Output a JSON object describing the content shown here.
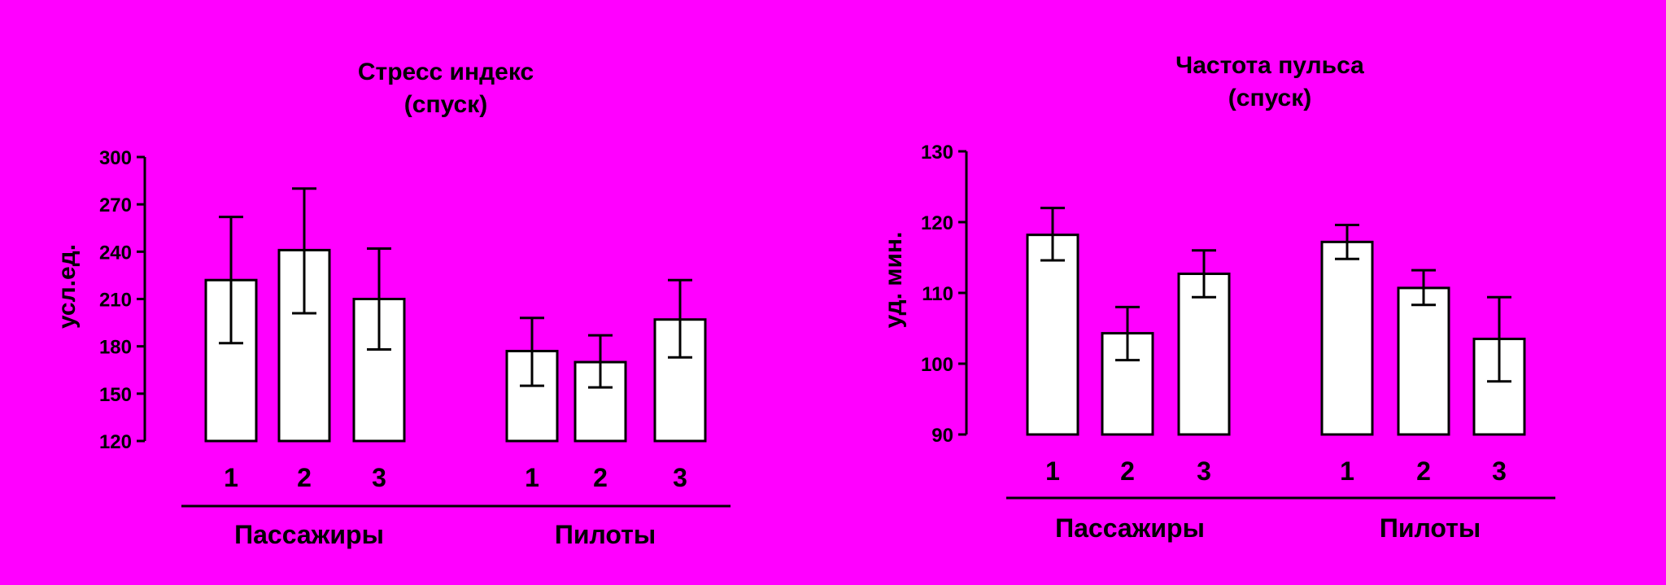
{
  "background": "#ff00ff",
  "bar_fill": "#ffffff",
  "ink": "#000000",
  "chart_data": [
    {
      "type": "bar",
      "title": "Стресс индекс",
      "subtitle": "(спуск)",
      "ylabel": "усл.ед.",
      "ylim": [
        120,
        300
      ],
      "yticks": [
        120,
        150,
        180,
        210,
        240,
        270,
        300
      ],
      "groups": [
        {
          "name": "Пассажиры",
          "categories": [
            "1",
            "2",
            "3"
          ],
          "values": [
            222,
            241,
            210
          ],
          "err_low": [
            182,
            201,
            178
          ],
          "err_high": [
            262,
            280,
            242
          ]
        },
        {
          "name": "Пилоты",
          "categories": [
            "1",
            "2",
            "3"
          ],
          "values": [
            177,
            170,
            197
          ],
          "err_low": [
            155,
            154,
            173
          ],
          "err_high": [
            198,
            187,
            222
          ]
        }
      ]
    },
    {
      "type": "bar",
      "title": "Частота пульса",
      "subtitle": "(спуск)",
      "ylabel": "уд. мин.",
      "ylim": [
        90,
        130
      ],
      "yticks": [
        90,
        100,
        110,
        120,
        130
      ],
      "groups": [
        {
          "name": "Пассажиры",
          "categories": [
            "1",
            "2",
            "3"
          ],
          "values": [
            118.2,
            104.3,
            112.7
          ],
          "err_low": [
            114.6,
            100.5,
            109.4
          ],
          "err_high": [
            122.0,
            108.0,
            116.0
          ]
        },
        {
          "name": "Пилоты",
          "categories": [
            "1",
            "2",
            "3"
          ],
          "values": [
            117.2,
            110.7,
            103.5
          ],
          "err_low": [
            114.8,
            108.3,
            97.5
          ],
          "err_high": [
            119.6,
            113.2,
            109.4
          ]
        }
      ]
    }
  ]
}
